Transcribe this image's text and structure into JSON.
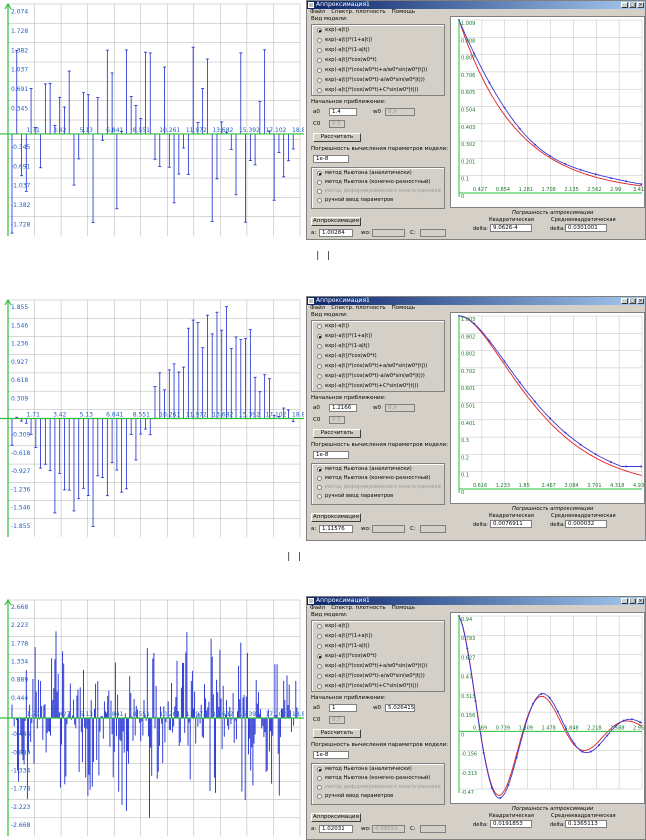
{
  "separators": [
    "| |",
    "| |"
  ],
  "panels": [
    {
      "left_plot": {
        "ytick_labels": [
          "2.074",
          "1.728",
          "1.382",
          "1.037",
          "0.691",
          "0.345",
          "-0.345",
          "-0.691",
          "-1.037",
          "-1.382",
          "-1.728"
        ],
        "xtick_labels": [
          "1.71",
          "3.42",
          "5.13",
          "6.841",
          "8.551",
          "10.261",
          "11.972",
          "13.682",
          "15.392",
          "17.102",
          "18.81"
        ]
      },
      "window": {
        "title": "Аппроксимация1",
        "menu": [
          "Файл",
          "Спектр. плотность",
          "Помощь"
        ],
        "model_heading": "Вид модели:",
        "models": [
          "exp(-a|t|)",
          "exp(-a|t|)*(1+a|t|)",
          "exp(-a|t|)*(1-a|t|)",
          "exp(-a|t|)*cos(w0*t)",
          "exp(-a|t|)*(cos(w0*t)+a/w0*sin(w0*|t|))",
          "exp(-a|t|)*(cos(w0*t)-a/w0*sin(w0*|t|))",
          "exp(-a|t|)*(cos(w0*t)+C*sin(w0*|t|))"
        ],
        "selected_model": 0,
        "init_heading": "Начальное приближение:",
        "a0_label": "a0",
        "a0_value": "1.4",
        "w0_label": "w0",
        "w0_value": "0.9",
        "c0_label": "C0",
        "c0_value": "0.5",
        "calc_button": "Рассчитать",
        "precision_heading": "Погрешность вычисления параметров модели:",
        "precision_value": "1e-8",
        "methods": [
          "метод Ньютона (аналитически)",
          "метод Ньютона (конечно-разностный)",
          "метод деформированного многогранника",
          "ручной ввод параметров"
        ],
        "selected_method": 0,
        "approx_button": "Аппроксимация",
        "a_label": "a:",
        "a_value": "1.00284",
        "wo_label": "wo:",
        "wo_value": "",
        "c_label": "C:",
        "c_value": "",
        "error_heading": "Погрешность аппроксимации",
        "quad_label": "Квадратическая",
        "rms_label": "Среднеквадратическая",
        "delta_label": "delta:",
        "quad_value": "9.0626-4",
        "rms_value": "0.0301001"
      },
      "right_plot": {
        "ytick_labels": [
          "1.009",
          "0.908",
          "0.807",
          "0.706",
          "0.605",
          "0.504",
          "0.403",
          "0.302",
          "0.201",
          "0.1",
          "0"
        ],
        "xtick_labels": [
          "0.427",
          "0.854",
          "1.281",
          "1.708",
          "2.135",
          "2.562",
          "2.99",
          "3.417"
        ]
      }
    },
    {
      "left_plot": {
        "ytick_labels": [
          "1.855",
          "1.546",
          "1.236",
          "0.927",
          "0.618",
          "0.309",
          "-0.309",
          "-0.618",
          "-0.927",
          "-1.236",
          "-1.546",
          "-1.855"
        ],
        "xtick_labels": [
          "1.71",
          "3.42",
          "5.13",
          "6.841",
          "8.551",
          "10.261",
          "11.972",
          "13.682",
          "15.392",
          "17.102",
          "18.81"
        ]
      },
      "window": {
        "title": "Аппроксимация1",
        "menu": [
          "Файл",
          "Спектр. плотность",
          "Помощь"
        ],
        "model_heading": "Вид модели:",
        "models": [
          "exp(-a|t|)",
          "exp(-a|t|)*(1+a|t|)",
          "exp(-a|t|)*(1-a|t|)",
          "exp(-a|t|)*cos(w0*t)",
          "exp(-a|t|)*(cos(w0*t)+a/w0*sin(w0*|t|))",
          "exp(-a|t|)*(cos(w0*t)-a/w0*sin(w0*|t|))",
          "exp(-a|t|)*(cos(w0*t)+C*sin(w0*|t|))"
        ],
        "selected_model": 1,
        "init_heading": "Начальное приближение:",
        "a0_label": "a0",
        "a0_value": "1.2166",
        "w0_label": "w0",
        "w0_value": "0.9",
        "c0_label": "C0",
        "c0_value": "0.5",
        "calc_button": "Рассчитать",
        "precision_heading": "Погрешность вычисления параметров модели:",
        "precision_value": "1e-8",
        "methods": [
          "метод Ньютона (аналитически)",
          "метод Ньютона (конечно-разностный)",
          "метод деформированного многогранника",
          "ручной ввод параметров"
        ],
        "selected_method": 0,
        "approx_button": "Аппроксимация",
        "a_label": "a:",
        "a_value": "1.11576",
        "wo_label": "wo:",
        "wo_value": "",
        "c_label": "C:",
        "c_value": "",
        "error_heading": "Погрешность аппроксимации",
        "quad_label": "Квадратическая",
        "rms_label": "Среднеквадратическая",
        "delta_label": "delta:",
        "quad_value": "0.0076911",
        "rms_value": "0.000032"
      },
      "right_plot": {
        "ytick_labels": [
          "1.003",
          "0.902",
          "0.802",
          "0.702",
          "0.601",
          "0.501",
          "0.401",
          "0.3",
          "0.2",
          "0.1",
          "0"
        ],
        "xtick_labels": [
          "0.616",
          "1.233",
          "1.85",
          "2.467",
          "3.084",
          "3.701",
          "4.318",
          "4.935"
        ]
      }
    },
    {
      "left_plot": {
        "ytick_labels": [
          "2.668",
          "2.223",
          "1.778",
          "1.334",
          "0.889",
          "0.444",
          "-0.444",
          "-0.889",
          "-1.334",
          "-1.778",
          "-2.223",
          "-2.668"
        ],
        "xtick_labels": [
          "1.71",
          "3.427",
          "5.13",
          "6.841",
          "8.551",
          "10.261",
          "11.972",
          "13.682",
          "15.392",
          "17.102",
          "18.81"
        ]
      },
      "window": {
        "title": "Аппроксимация1",
        "menu": [
          "Файл",
          "Спектр. плотность",
          "Помощь"
        ],
        "model_heading": "Вид модели:",
        "models": [
          "exp(-a|t|)",
          "exp(-a|t|)*(1+a|t|)",
          "exp(-a|t|)*(1-a|t|)",
          "exp(-a|t|)*cos(w0*t)",
          "exp(-a|t|)*(cos(w0*t)+a/w0*sin(w0*|t|))",
          "exp(-a|t|)*(cos(w0*t)-a/w0*sin(w0*|t|))",
          "exp(-a|t|)*(cos(w0*t)+C*sin(w0*|t|))"
        ],
        "selected_model": 3,
        "init_heading": "Начальное приближение:",
        "a0_label": "a0",
        "a0_value": "1",
        "w0_label": "w0",
        "w0_value": "5.0264158",
        "c0_label": "C0",
        "c0_value": "0.5",
        "calc_button": "Рассчитать",
        "precision_heading": "Погрешность вычисления параметров модели:",
        "precision_value": "1e-8",
        "methods": [
          "метод Ньютона (аналитически)",
          "метод Ньютона (конечно-разностный)",
          "метод деформированного многогранника",
          "ручной ввод параметров"
        ],
        "selected_method": 0,
        "approx_button": "Аппроксимация",
        "a_label": "a:",
        "a_value": "1.02031",
        "wo_label": "wo:",
        "wo_value": "4.99552",
        "c_label": "C:",
        "c_value": "",
        "error_heading": "Погрешность аппроксимации",
        "quad_label": "Квадратическая",
        "rms_label": "Среднеквадратическая",
        "delta_label": "delta:",
        "quad_value": "0.0191853",
        "rms_value": "0.1365113"
      },
      "right_plot": {
        "ytick_labels": [
          "0.94",
          "0.783",
          "0.627",
          "0.47",
          "0.313",
          "0.156",
          "0",
          "-0.156",
          "-0.313",
          "-0.47"
        ],
        "xtick_labels": [
          "0.369",
          "0.739",
          "1.109",
          "1.478",
          "1.848",
          "2.218",
          "2.588",
          "2.957"
        ]
      }
    }
  ],
  "colors": {
    "bars": "#1a2ad0",
    "axes": "#2bbf3a",
    "grid": "#b0b0b0",
    "fit_red": "#e02020",
    "fit_blue": "#3a3ad8"
  }
}
